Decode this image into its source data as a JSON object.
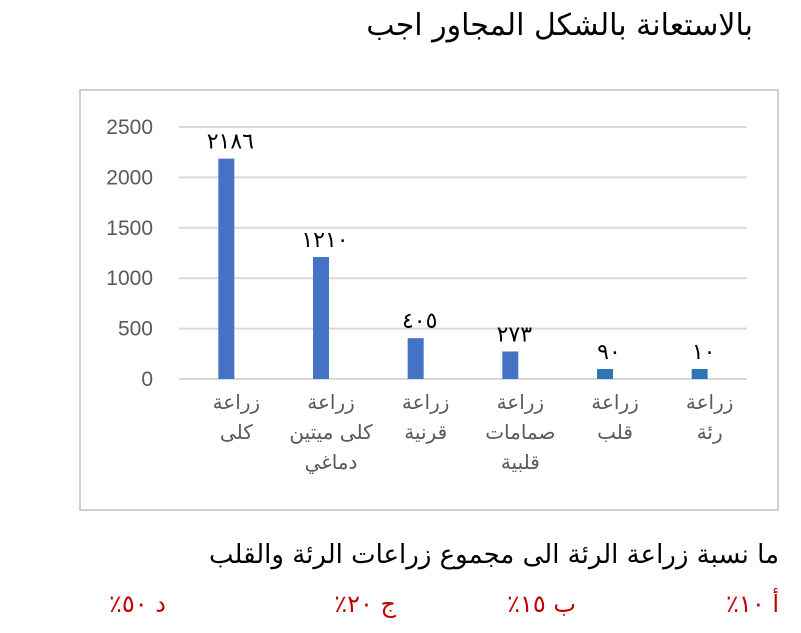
{
  "heading": "بالاستعانة بالشكل المجاور اجب",
  "chart_data": {
    "type": "bar",
    "title": "",
    "xlabel": "",
    "ylabel": "",
    "ylim": [
      0,
      2500
    ],
    "yticks": [
      "0",
      "500",
      "1000",
      "1500",
      "2000",
      "2500"
    ],
    "grid": true,
    "categories": [
      [
        "زراعة",
        "رئة"
      ],
      [
        "زراعة",
        "قلب"
      ],
      [
        "زراعة",
        "صمامات",
        "قلبية"
      ],
      [
        "زراعة",
        "قرنية"
      ],
      [
        "زراعة",
        "كلى ميتين",
        "دماغي"
      ],
      [
        "زراعة",
        "كلى"
      ]
    ],
    "values": [
      10,
      90,
      273,
      405,
      1210,
      2186
    ],
    "data_labels": [
      "١٠",
      "٩٠",
      "٢٧٣",
      "٤٠٥",
      "١٢١٠",
      "٢١٨٦"
    ],
    "bar_colors": [
      "#2e75b6",
      "#2e75b6",
      "#4472c4",
      "#4472c4",
      "#4472c4",
      "#4472c4"
    ],
    "axis_order": "right-to-left"
  },
  "question": "ما نسبة زراعة الرئة الى مجموع زراعات الرئة والقلب",
  "choices": {
    "a": "أ ١٠٪",
    "b": "ب ١٥٪",
    "c": "ج ٢٠٪",
    "d": "د ٥٠٪"
  },
  "colors": {
    "choice": "#c00000",
    "gridline": "#d9d9d9",
    "axis_text": "#595959"
  }
}
